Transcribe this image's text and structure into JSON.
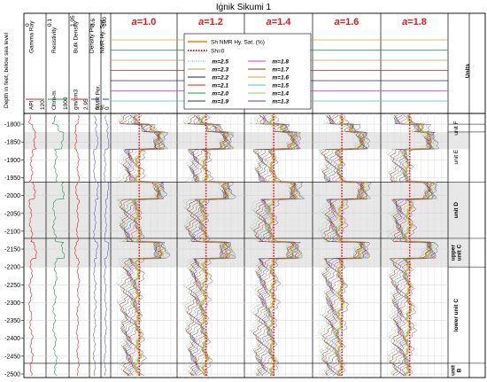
{
  "chart_data": {
    "type": "line",
    "title": "Iġnik Sikumi 1",
    "depth_axis": {
      "label": "Depth in feet, below sea level",
      "ticks": [
        -1800,
        -1850,
        -1900,
        -1950,
        -2000,
        -2050,
        -2100,
        -2150,
        -2200,
        -2250,
        -2300,
        -2350,
        -2400,
        -2450,
        -2500
      ],
      "range": [
        -1770,
        -2510
      ]
    },
    "tracks": [
      {
        "name": "Gamma Ray",
        "unit": "API",
        "scale_min": "0",
        "scale_max": "120",
        "color": "#e8171b"
      },
      {
        "name": "Resistivity",
        "unit": "Ohm-m",
        "scale_min": "0.1",
        "scale_max": "1000",
        "color": "#1a9a4a"
      },
      {
        "name": "Bulk Density",
        "unit": "gm/cm3",
        "scale_min": "1.95",
        "scale_max": "2.95",
        "color": "#e8171b"
      },
      {
        "name": "Density Por.",
        "sub": "NMR Por.",
        "unit": "",
        "scale_min": "0.6",
        "scale_max": "0",
        "color": "#1f3fbf"
      },
      {
        "name": "NMR Hy. Sat.",
        "unit": "%",
        "scale_min": "100",
        "scale_max": "0",
        "color": "#1f3fbf"
      }
    ],
    "panels": [
      {
        "a_label": "a",
        "a_value": "=1.0"
      },
      {
        "a_label": "a",
        "a_value": "=1.2"
      },
      {
        "a_label": "a",
        "a_value": "=1.4"
      },
      {
        "a_label": "a",
        "a_value": "=1.6"
      },
      {
        "a_label": "a",
        "a_value": "=1.8"
      }
    ],
    "legend": {
      "top_items": [
        {
          "label": "Sh NMR Hy. Sat. (%)",
          "color": "#d8b25a",
          "style": "solid"
        },
        {
          "label": "Sh=0",
          "color": "#e8171b",
          "style": "dotted"
        }
      ],
      "m_series": [
        {
          "label": "m=2.5",
          "color": "#4db6e6",
          "style": "dotted"
        },
        {
          "label": "m=2.3",
          "color": "#b7a24a",
          "style": "solid"
        },
        {
          "label": "m=2.2",
          "color": "#222222",
          "style": "solid"
        },
        {
          "label": "m=2.1",
          "color": "#e8171b",
          "style": "solid"
        },
        {
          "label": "m=2.0",
          "color": "#1a9a4a",
          "style": "solid"
        },
        {
          "label": "m=1.9",
          "color": "#1f2b8f",
          "style": "solid"
        },
        {
          "label": "m=1.8",
          "color": "#d63ad6",
          "style": "solid"
        },
        {
          "label": "m=1.7",
          "color": "#7a3f1f",
          "style": "solid"
        },
        {
          "label": "m=1.6",
          "color": "#e5a02b",
          "style": "solid"
        },
        {
          "label": "m=1.5",
          "color": "#3ec9c9",
          "style": "solid"
        },
        {
          "label": "m=1.4",
          "color": "#8fd14f",
          "style": "solid"
        },
        {
          "label": "m=1.3",
          "color": "#7a2fa0",
          "style": "solid"
        }
      ]
    },
    "units_header": "Units",
    "units": [
      {
        "lines": [
          "unit F"
        ],
        "top": -1800,
        "bottom": -1822,
        "bold": false
      },
      {
        "lines": [
          "unit E"
        ],
        "top": -1822,
        "bottom": -1962,
        "bold": false
      },
      {
        "lines": [
          "unit D"
        ],
        "top": -1962,
        "bottom": -2120,
        "bold": true
      },
      {
        "lines": [
          "upper",
          "unit C"
        ],
        "top": -2120,
        "bottom": -2200,
        "bold": true
      },
      {
        "lines": [
          "lower unit C"
        ],
        "top": -2200,
        "bottom": -2470,
        "bold": true
      },
      {
        "lines": [
          "unit",
          "B"
        ],
        "top": -2470,
        "bottom": -2510,
        "bold": true
      }
    ],
    "shaded_intervals": [
      [
        -1822,
        -1870
      ],
      [
        -1962,
        -2120
      ],
      [
        -2120,
        -2200
      ]
    ],
    "grid": true
  }
}
